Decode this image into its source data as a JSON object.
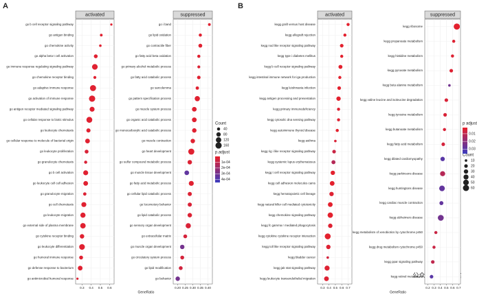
{
  "chart_data": [
    {
      "type": "dot",
      "label": "A",
      "xlabel": "GeneRatio",
      "color_low": "#e8202a",
      "color_high": "#3a3cc0",
      "size_legend": {
        "title": "Count",
        "values": [
          40,
          80,
          120,
          160
        ]
      },
      "color_legend": {
        "title": "p.adjust",
        "lim": [
          0,
          0.00045
        ],
        "ticks": [
          {
            "value": 0.0001,
            "label": "1e-04"
          },
          {
            "value": 0.0002,
            "label": "2e-04"
          },
          {
            "value": 0.0003,
            "label": "3e-04"
          },
          {
            "value": 0.0004,
            "label": "4e-04"
          }
        ]
      },
      "facets": [
        {
          "title": "activated",
          "xlim": [
            0.23,
            0.65
          ],
          "xticks": [
            0.3,
            0.4,
            0.5,
            0.6
          ],
          "categories": [
            "go b cell receptor signaling pathway",
            "go antigen binding",
            "go chemokine activity",
            "go alpha beta t cell activation",
            "go immune response regulating signaling pathway",
            "go chemokine receptor binding",
            "go adaptive immune response",
            "go activation of immune response",
            "go antigen receptor mediated signaling pathway",
            "go cellular response to biotic stimulus",
            "go leukocyte chemotaxis",
            "go cellular response to molecule of bacterial origin",
            "go leukocyte proliferation",
            "go granulocyte chemotaxis",
            "go b cell activation",
            "go leukocyte cell cell adhesion",
            "go granulocyte migration",
            "go cell chemotaxis",
            "go leukocyte migration",
            "go external side of plasma membrane",
            "go cytokine receptor binding",
            "go leukocyte differentiation",
            "go humoral immune response",
            "go defense response to bacterium",
            "go antimicrobial humoral response"
          ],
          "values": [
            0.62,
            0.51,
            0.5,
            0.45,
            0.44,
            0.44,
            0.42,
            0.41,
            0.41,
            0.38,
            0.37,
            0.36,
            0.35,
            0.34,
            0.34,
            0.34,
            0.33,
            0.32,
            0.31,
            0.31,
            0.3,
            0.3,
            0.29,
            0.28,
            0.25
          ],
          "sizes": [
            20,
            30,
            25,
            60,
            130,
            35,
            150,
            160,
            100,
            140,
            70,
            90,
            60,
            40,
            100,
            90,
            45,
            100,
            110,
            120,
            80,
            130,
            60,
            90,
            20
          ],
          "p_adjust": [
            2e-05,
            2e-05,
            2e-05,
            2e-05,
            2e-05,
            2e-05,
            2e-05,
            2e-05,
            2e-05,
            2e-05,
            2e-05,
            2e-05,
            4e-05,
            4e-05,
            2e-05,
            2e-05,
            3e-05,
            2e-05,
            2e-05,
            2e-05,
            2e-05,
            2e-05,
            2e-05,
            2e-05,
            3e-05
          ]
        },
        {
          "title": "suppressed",
          "xlim": [
            0.17,
            0.43
          ],
          "xticks": [
            {
              "value": 0.2,
              "label": "0.20"
            },
            0.25,
            {
              "value": 0.3,
              "label": "0.30"
            },
            0.35,
            {
              "value": 0.4,
              "label": "0.40"
            }
          ],
          "categories": [
            "go i band",
            "go lipid oxidation",
            "go contractile fiber",
            "go fatty acid beta oxidation",
            "go primary alcohol metabolic process",
            "go fatty acid catabolic process",
            "go sarcolemma",
            "go pattern specification process",
            "go muscle system process",
            "go organic acid catabolic process",
            "go monocarboxylic acid catabolic process",
            "go muscle contraction",
            "go heart development",
            "go sulfur compound metabolic process",
            "go muscle tissue development",
            "go fatty acid metabolic process",
            "go cellular lipid catabolic process",
            "go locomotory behavior",
            "go lipid catabolic process",
            "go sensory organ development",
            "go extracellular matrix",
            "go muscle organ development",
            "go circulatory system process",
            "go lipid modification",
            "go behavior"
          ],
          "values": [
            0.41,
            0.35,
            0.35,
            0.34,
            0.34,
            0.34,
            0.33,
            0.33,
            0.31,
            0.31,
            0.31,
            0.3,
            0.29,
            0.28,
            0.26,
            0.29,
            0.28,
            0.28,
            0.28,
            0.27,
            0.25,
            0.23,
            0.23,
            0.22,
            0.2
          ],
          "sizes": [
            30,
            40,
            60,
            40,
            35,
            50,
            45,
            110,
            90,
            90,
            80,
            80,
            150,
            80,
            90,
            100,
            70,
            70,
            80,
            110,
            60,
            80,
            60,
            60,
            80
          ],
          "p_adjust": [
            2e-05,
            2e-05,
            2e-05,
            2e-05,
            3e-05,
            2e-05,
            2e-05,
            2e-05,
            2e-05,
            2e-05,
            2e-05,
            2e-05,
            2e-05,
            3e-05,
            0.00035,
            2e-05,
            3e-05,
            4e-05,
            3e-05,
            4e-05,
            5e-05,
            0.0003,
            5e-05,
            6e-05,
            0.0003
          ]
        }
      ]
    },
    {
      "type": "dot",
      "label": "B",
      "xlabel": "GeneRatio",
      "color_low": "#e8202a",
      "color_high": "#3a3cc0",
      "size_legend": {
        "title": "Count",
        "values": [
          10,
          20,
          30,
          40,
          50,
          60
        ]
      },
      "color_legend": {
        "title": "p adjust",
        "lim": [
          0.002,
          0.036
        ],
        "ticks": [
          0.01,
          0.02,
          0.03
        ]
      },
      "facets": [
        {
          "title": "activated",
          "xlim": [
            0.22,
            0.76
          ],
          "xticks": [
            0.3,
            0.4,
            0.5,
            0.6,
            0.7
          ],
          "categories": [
            "kegg graft versus host disease",
            "kegg allograft rejection",
            "kegg nod like receptor signaling pathway",
            "kegg type i diabetes mellitus",
            "kegg b cell receptor signaling pathway",
            "kegg intestinal immune network for iga production",
            "kegg leishmania infection",
            "kegg antigen processing and presentation",
            "kegg primary immunodeficiency",
            "kegg cytosolic dna sensing pathway",
            "kegg autoimmune thyroid disease",
            "kegg asthma",
            "kegg rig i like receptor signaling pathway",
            "kegg systemic lupus erythematosus",
            "kegg t cell receptor signaling pathway",
            "kegg cell adhesion molecules cams",
            "kegg hematopoietic cell lineage",
            "kegg natural killer cell mediated cytotoxicity",
            "kegg chemokine signaling pathway",
            "kegg fc gamma r mediated phagocytosis",
            "kegg cytokine cytokine receptor interaction",
            "kegg toll like receptor signaling pathway",
            "kegg bladder cancer",
            "kegg jak stat signaling pathway",
            "kegg leukocyte transendothelial migration"
          ],
          "values": [
            0.7,
            0.65,
            0.6,
            0.6,
            0.58,
            0.57,
            0.56,
            0.55,
            0.55,
            0.55,
            0.53,
            0.5,
            0.48,
            0.47,
            0.46,
            0.45,
            0.44,
            0.42,
            0.42,
            0.42,
            0.38,
            0.39,
            0.38,
            0.37,
            0.36
          ],
          "sizes": [
            15,
            15,
            20,
            15,
            25,
            15,
            20,
            30,
            15,
            15,
            15,
            10,
            20,
            25,
            30,
            35,
            30,
            35,
            45,
            30,
            55,
            30,
            10,
            40,
            35
          ],
          "p_adjust": [
            0.003,
            0.003,
            0.003,
            0.003,
            0.003,
            0.003,
            0.003,
            0.003,
            0.004,
            0.004,
            0.003,
            0.005,
            0.008,
            0.012,
            0.003,
            0.003,
            0.004,
            0.003,
            0.003,
            0.004,
            0.003,
            0.004,
            0.006,
            0.004,
            0.004
          ]
        },
        {
          "title": "suppressed",
          "xlim": [
            0.15,
            0.73
          ],
          "xticks": [
            0.2,
            0.3,
            0.4,
            0.5,
            0.6,
            0.7
          ],
          "categories": [
            "kegg ribosome",
            "kegg propanoate metabolism",
            "kegg histidine metabolism",
            "kegg pyruvate metabolism",
            "kegg beta alanine metabolism",
            "kegg valine leucine and isoleucine degradation",
            "kegg tyrosine metabolism",
            "kegg butanoate metabolism",
            "kegg fatty acid metabolism",
            "kegg dilated cardiomyopathy",
            "kegg parkinsons disease",
            "kegg huntingtons disease",
            "kegg cardiac muscle contraction",
            "kegg alzheimers disease",
            "kegg metabolism of xenobiotics by cytochrome p450",
            "kegg drug metabolism cytochrome p450",
            "kegg ppar signaling pathway",
            "kegg retinol metabolism"
          ],
          "values": [
            0.67,
            0.62,
            0.6,
            0.58,
            0.55,
            0.5,
            0.48,
            0.47,
            0.45,
            0.44,
            0.44,
            0.43,
            0.42,
            0.41,
            0.33,
            0.3,
            0.28,
            0.26
          ],
          "sizes": [
            60,
            15,
            15,
            20,
            10,
            20,
            20,
            15,
            20,
            30,
            40,
            50,
            25,
            55,
            15,
            15,
            20,
            20
          ],
          "p_adjust": [
            0.003,
            0.004,
            0.004,
            0.004,
            0.025,
            0.005,
            0.005,
            0.005,
            0.006,
            0.03,
            0.012,
            0.028,
            0.028,
            0.025,
            0.008,
            0.008,
            0.01,
            0.03
          ]
        }
      ]
    }
  ],
  "watermark": "公众号 · 中科生信"
}
